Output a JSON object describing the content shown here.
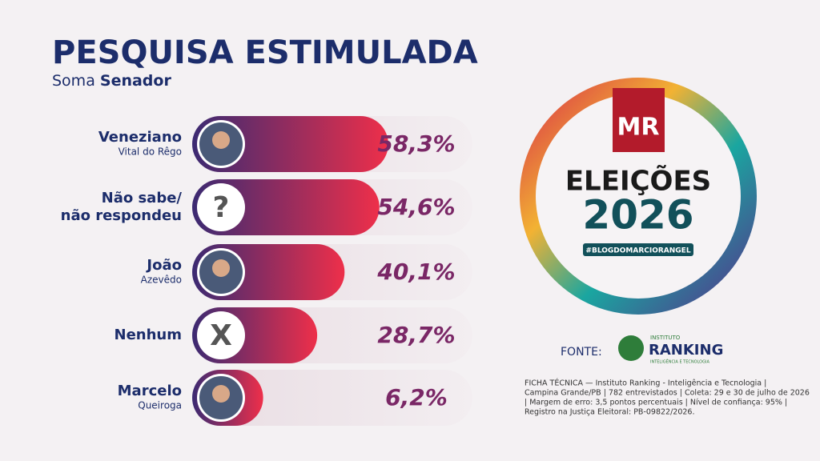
{
  "chart_data": {
    "type": "bar",
    "title": "PESQUISA ESTIMULADA",
    "subtitle": [
      "Soma",
      "Senador"
    ],
    "categories": [
      "Veneziano",
      "Não sabe/",
      "João",
      "Nenhum",
      "Marcelo"
    ],
    "category_sublabels": [
      "Vital do Rêgo",
      "não respondeu",
      "Azevêdo",
      null,
      "Queiroga"
    ],
    "avatar_symbols": [
      null,
      "?",
      null,
      "X",
      null
    ],
    "values": [
      58.3,
      54.6,
      40.1,
      28.7,
      6.2
    ],
    "value_labels": [
      "58,3%",
      "54,6%",
      "40,1%",
      "28,7%",
      "6,2%"
    ],
    "colors": [
      "#3b2a72",
      "#ee2f4a"
    ]
  },
  "logo": {
    "brand": "MR",
    "heading": "ELEIÇÕES",
    "year": "2026",
    "tag": "#BLOGDOMARCIORANGEL"
  },
  "source": {
    "label": "FONTE:",
    "top": "INSTITUTO",
    "name": "RANKING",
    "bottom": "INTELIGÊNCIA E TECNOLOGIA"
  },
  "footnote": [
    "FICHA TÉCNICA — Instituto Ranking - Inteligência e Tecnologia |",
    "Campina Grande/PB | 782 entrevistados | Coleta: 29 e 30 de julho de 2026",
    "| Margem de erro: 3,5 pontos percentuais | Nível de confiança: 95% |",
    "Registro na Justiça Eleitoral: PB-09822/2026."
  ]
}
